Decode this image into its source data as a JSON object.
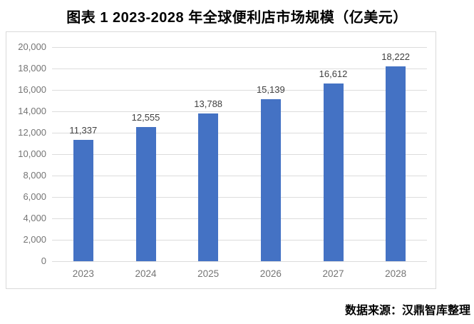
{
  "title": "图表 1 2023-2028 年全球便利店市场规模（亿美元）",
  "source_note": "数据来源：汉鼎智库整理",
  "colors": {
    "bar": "#4472c4",
    "gridline": "#dcdcdc",
    "frame_border": "#d9d9d9",
    "axis_text": "#757575",
    "value_label_text": "#404040",
    "title_text": "#000000",
    "background": "#ffffff"
  },
  "chart_data": {
    "type": "bar",
    "title": "图表 1 2023-2028 年全球便利店市场规模（亿美元）",
    "xlabel": "",
    "ylabel": "",
    "categories": [
      "2023",
      "2024",
      "2025",
      "2026",
      "2027",
      "2028"
    ],
    "values": [
      11337,
      12555,
      13788,
      15139,
      16612,
      18222
    ],
    "value_labels": [
      "11,337",
      "12,555",
      "13,788",
      "15,139",
      "16,612",
      "18,222"
    ],
    "ylim": [
      0,
      20000
    ],
    "ytick_step": 2000,
    "ytick_labels": [
      "0",
      "2,000",
      "4,000",
      "6,000",
      "8,000",
      "10,000",
      "12,000",
      "14,000",
      "16,000",
      "18,000",
      "20,000"
    ],
    "grid": true,
    "legend": "none",
    "source": "数据来源：汉鼎智库整理"
  }
}
